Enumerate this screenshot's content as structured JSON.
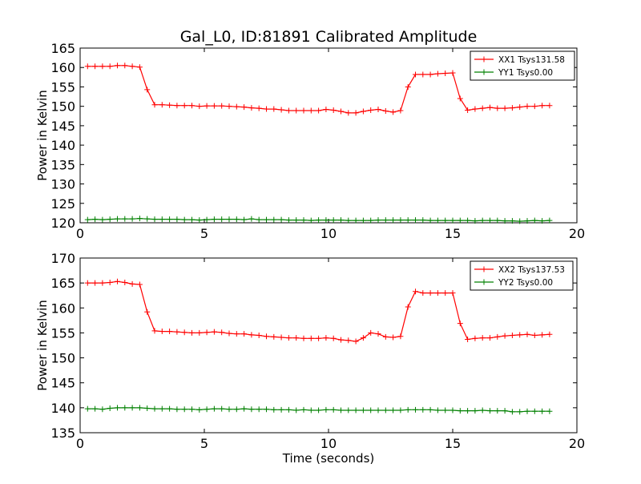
{
  "chart_data": [
    {
      "type": "line",
      "title": "Gal_L0, ID:81891 Calibrated Amplitude",
      "xlabel": "",
      "ylabel": "Power in Kelvin",
      "xlim": [
        0,
        20
      ],
      "ylim": [
        120,
        165
      ],
      "xticks": [
        0,
        5,
        10,
        15,
        20
      ],
      "yticks": [
        120,
        125,
        130,
        135,
        140,
        145,
        150,
        155,
        160,
        165
      ],
      "grid": false,
      "legend": "top-right",
      "x": [
        0.3,
        0.6,
        0.9,
        1.2,
        1.5,
        1.8,
        2.1,
        2.4,
        2.7,
        3.0,
        3.3,
        3.6,
        3.9,
        4.2,
        4.5,
        4.8,
        5.1,
        5.4,
        5.7,
        6.0,
        6.3,
        6.6,
        6.9,
        7.2,
        7.5,
        7.8,
        8.1,
        8.4,
        8.7,
        9.0,
        9.3,
        9.6,
        9.9,
        10.2,
        10.5,
        10.8,
        11.1,
        11.4,
        11.7,
        12.0,
        12.3,
        12.6,
        12.9,
        13.2,
        13.5,
        13.8,
        14.1,
        14.4,
        14.7,
        15.0,
        15.3,
        15.6,
        15.9,
        16.2,
        16.5,
        16.8,
        17.1,
        17.4,
        17.7,
        18.0,
        18.3,
        18.6,
        18.9
      ],
      "series": [
        {
          "name": "XX1 Tsys131.58",
          "color": "#ff0000",
          "values": [
            160.3,
            160.3,
            160.3,
            160.3,
            160.5,
            160.5,
            160.3,
            160.1,
            154.3,
            150.4,
            150.4,
            150.3,
            150.2,
            150.2,
            150.2,
            150.0,
            150.1,
            150.1,
            150.1,
            150.0,
            149.9,
            149.8,
            149.6,
            149.5,
            149.3,
            149.3,
            149.1,
            148.9,
            148.9,
            148.9,
            148.9,
            148.9,
            149.2,
            149.0,
            148.7,
            148.3,
            148.3,
            148.7,
            149.0,
            149.2,
            148.8,
            148.5,
            148.9,
            155.0,
            158.2,
            158.2,
            158.2,
            158.4,
            158.5,
            158.6,
            152.0,
            149.0,
            149.3,
            149.5,
            149.7,
            149.5,
            149.5,
            149.6,
            149.8,
            150.0,
            150.0,
            150.2,
            150.2
          ]
        },
        {
          "name": "YY1 Tsys0.00",
          "color": "#008000",
          "values": [
            120.8,
            120.9,
            120.8,
            120.9,
            121.0,
            121.0,
            121.0,
            121.1,
            121.0,
            120.9,
            120.9,
            120.9,
            120.9,
            120.8,
            120.8,
            120.7,
            120.8,
            120.9,
            120.9,
            120.9,
            120.9,
            120.8,
            121.0,
            120.8,
            120.8,
            120.8,
            120.8,
            120.7,
            120.7,
            120.7,
            120.6,
            120.7,
            120.7,
            120.7,
            120.7,
            120.6,
            120.6,
            120.6,
            120.6,
            120.7,
            120.7,
            120.7,
            120.7,
            120.7,
            120.7,
            120.7,
            120.6,
            120.6,
            120.6,
            120.6,
            120.6,
            120.6,
            120.5,
            120.6,
            120.6,
            120.6,
            120.5,
            120.5,
            120.4,
            120.5,
            120.6,
            120.5,
            120.6
          ]
        }
      ]
    },
    {
      "type": "line",
      "title": "",
      "xlabel": "Time (seconds)",
      "ylabel": "Power in Kelvin",
      "xlim": [
        0,
        20
      ],
      "ylim": [
        135,
        170
      ],
      "xticks": [
        0,
        5,
        10,
        15,
        20
      ],
      "yticks": [
        135,
        140,
        145,
        150,
        155,
        160,
        165,
        170
      ],
      "grid": false,
      "legend": "top-right",
      "x": [
        0.3,
        0.6,
        0.9,
        1.2,
        1.5,
        1.8,
        2.1,
        2.4,
        2.7,
        3.0,
        3.3,
        3.6,
        3.9,
        4.2,
        4.5,
        4.8,
        5.1,
        5.4,
        5.7,
        6.0,
        6.3,
        6.6,
        6.9,
        7.2,
        7.5,
        7.8,
        8.1,
        8.4,
        8.7,
        9.0,
        9.3,
        9.6,
        9.9,
        10.2,
        10.5,
        10.8,
        11.1,
        11.4,
        11.7,
        12.0,
        12.3,
        12.6,
        12.9,
        13.2,
        13.5,
        13.8,
        14.1,
        14.4,
        14.7,
        15.0,
        15.3,
        15.6,
        15.9,
        16.2,
        16.5,
        16.8,
        17.1,
        17.4,
        17.7,
        18.0,
        18.3,
        18.6,
        18.9
      ],
      "series": [
        {
          "name": "XX2 Tsys137.53",
          "color": "#ff0000",
          "values": [
            165.0,
            165.0,
            165.0,
            165.1,
            165.3,
            165.1,
            164.8,
            164.7,
            159.2,
            155.4,
            155.3,
            155.3,
            155.2,
            155.1,
            155.0,
            155.0,
            155.1,
            155.2,
            155.1,
            154.9,
            154.8,
            154.8,
            154.6,
            154.5,
            154.3,
            154.2,
            154.1,
            154.0,
            154.0,
            153.9,
            153.9,
            153.9,
            154.0,
            153.9,
            153.6,
            153.5,
            153.3,
            154.0,
            155.0,
            154.8,
            154.2,
            154.1,
            154.3,
            160.2,
            163.3,
            163.0,
            163.0,
            163.0,
            163.0,
            163.0,
            156.9,
            153.7,
            153.9,
            154.0,
            154.0,
            154.2,
            154.4,
            154.5,
            154.6,
            154.7,
            154.5,
            154.6,
            154.7
          ]
        },
        {
          "name": "YY2 Tsys0.00",
          "color": "#008000",
          "values": [
            139.8,
            139.8,
            139.7,
            139.9,
            140.0,
            140.0,
            140.0,
            140.0,
            139.9,
            139.8,
            139.8,
            139.8,
            139.7,
            139.7,
            139.7,
            139.6,
            139.7,
            139.8,
            139.8,
            139.7,
            139.7,
            139.8,
            139.7,
            139.7,
            139.7,
            139.6,
            139.6,
            139.6,
            139.5,
            139.6,
            139.5,
            139.5,
            139.6,
            139.6,
            139.5,
            139.5,
            139.5,
            139.5,
            139.5,
            139.5,
            139.5,
            139.5,
            139.5,
            139.6,
            139.6,
            139.6,
            139.6,
            139.5,
            139.5,
            139.5,
            139.4,
            139.4,
            139.4,
            139.5,
            139.4,
            139.4,
            139.4,
            139.2,
            139.2,
            139.3,
            139.3,
            139.3,
            139.3
          ]
        }
      ]
    }
  ]
}
